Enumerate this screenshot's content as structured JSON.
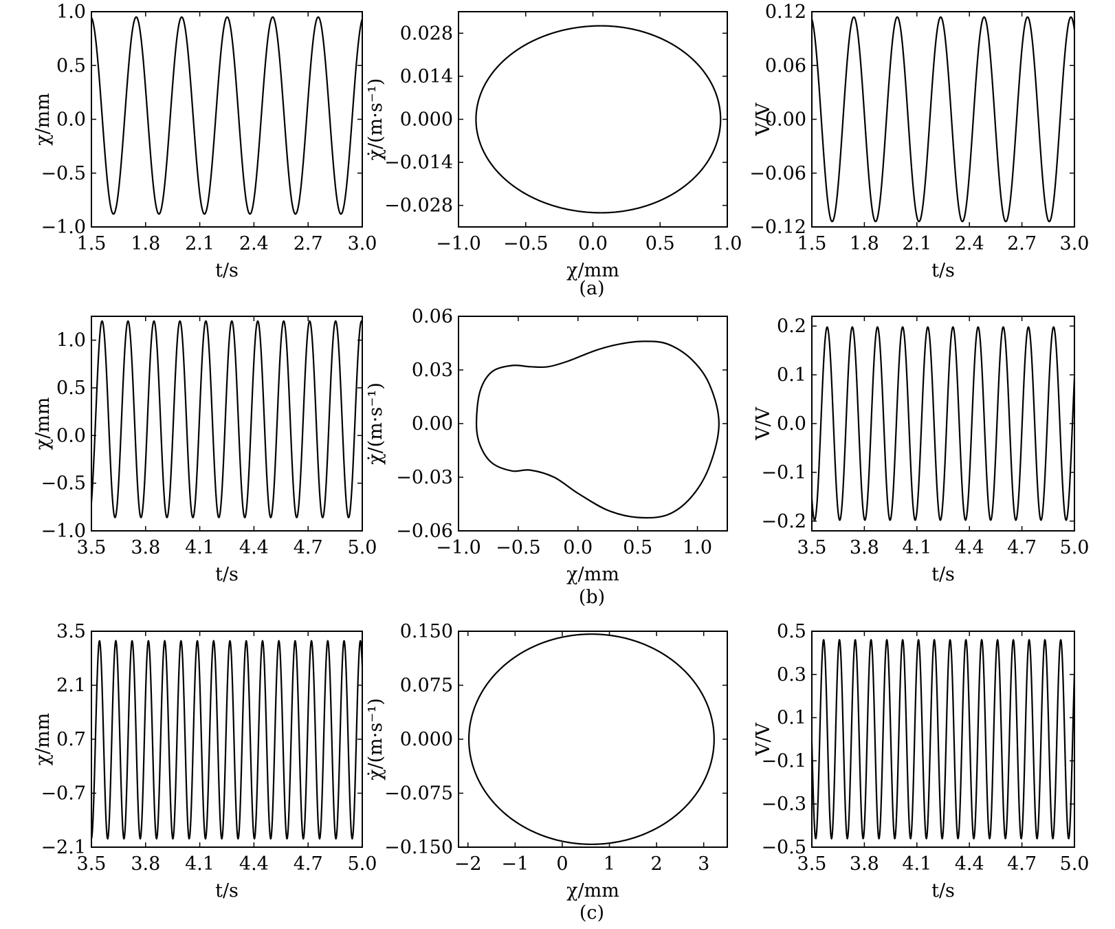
{
  "figure": {
    "captions": [
      "(a)",
      "(b)",
      "(c)"
    ]
  },
  "chart_data": [
    {
      "id": "a-time-disp",
      "type": "line",
      "xlabel": "t/s",
      "ylabel": "χ/mm",
      "xlim": [
        1.5,
        3.0
      ],
      "ylim": [
        -1.0,
        1.0
      ],
      "xticks": [
        "1.5",
        "1.8",
        "2.1",
        "2.4",
        "2.7",
        "3.0"
      ],
      "yticks": [
        "−1.0",
        "−0.5",
        "0.0",
        "0.5",
        "1.0"
      ],
      "series": [
        {
          "color": "#000000",
          "waveform": {
            "x_start": 1.5,
            "x_end": 3.0,
            "period": 0.252,
            "peak_x": 1.748,
            "max": 0.95,
            "min": -0.88
          }
        }
      ]
    },
    {
      "id": "a-phase",
      "type": "line",
      "xlabel": "χ/mm",
      "ylabel": "χ̇/(m·s⁻¹)",
      "xlim": [
        -1.0,
        1.0
      ],
      "ylim": [
        -0.035,
        0.035
      ],
      "xticks": [
        "−1.0",
        "−0.5",
        "0.0",
        "0.5",
        "1.0"
      ],
      "yticks": [
        "−0.028",
        "−0.014",
        "0.000",
        "0.014",
        "0.028"
      ],
      "series": [
        {
          "color": "#000000",
          "loop": {
            "x_min": -0.87,
            "x_max": 0.95,
            "y_max": 0.0304,
            "y_min": -0.0304,
            "x_at_extrema": 0.06
          }
        }
      ]
    },
    {
      "id": "a-time-volt",
      "type": "line",
      "xlabel": "t/s",
      "ylabel": "V/V",
      "xlim": [
        1.5,
        3.0
      ],
      "ylim": [
        -0.12,
        0.12
      ],
      "xticks": [
        "1.5",
        "1.8",
        "2.1",
        "2.4",
        "2.7",
        "3.0"
      ],
      "yticks": [
        "−0.12",
        "−0.06",
        "0.00",
        "0.06",
        "0.12"
      ],
      "series": [
        {
          "color": "#000000",
          "waveform": {
            "x_start": 1.5,
            "x_end": 3.0,
            "period": 0.248,
            "peak_x": 1.74,
            "max": 0.114,
            "min": -0.114
          }
        }
      ]
    },
    {
      "id": "b-time-disp",
      "type": "line",
      "xlabel": "t/s",
      "ylabel": "χ/mm",
      "xlim": [
        3.5,
        5.0
      ],
      "ylim": [
        -1.0,
        1.25
      ],
      "xticks": [
        "3.5",
        "3.8",
        "4.1",
        "4.4",
        "4.7",
        "5.0"
      ],
      "yticks": [
        "−1.0",
        "−0.5",
        "0.0",
        "0.5",
        "1.0"
      ],
      "series": [
        {
          "color": "#000000",
          "waveform": {
            "x_start": 3.5,
            "x_end": 5.0,
            "period": 0.1437,
            "peak_x": 3.559,
            "max": 1.2,
            "min": -0.86
          }
        }
      ]
    },
    {
      "id": "b-phase",
      "type": "line",
      "xlabel": "χ/mm",
      "ylabel": "χ̇/(m·s⁻¹)",
      "xlim": [
        -1.0,
        1.25
      ],
      "ylim": [
        -0.06,
        0.06
      ],
      "xticks": [
        "−1.0",
        "−0.5",
        "0.0",
        "0.5",
        "1.0"
      ],
      "yticks": [
        "−0.06",
        "−0.03",
        "0.00",
        "0.03",
        "0.06"
      ],
      "series": [
        {
          "color": "#000000",
          "points": [
            [
              -0.85,
              0.0
            ],
            [
              -0.82,
              0.018
            ],
            [
              -0.72,
              0.029
            ],
            [
              -0.55,
              0.0325
            ],
            [
              -0.4,
              0.0318
            ],
            [
              -0.25,
              0.0318
            ],
            [
              -0.08,
              0.035
            ],
            [
              0.15,
              0.041
            ],
            [
              0.35,
              0.0445
            ],
            [
              0.55,
              0.046
            ],
            [
              0.75,
              0.0445
            ],
            [
              0.95,
              0.036
            ],
            [
              1.1,
              0.022
            ],
            [
              1.18,
              0.0
            ],
            [
              1.1,
              -0.024
            ],
            [
              0.95,
              -0.041
            ],
            [
              0.75,
              -0.051
            ],
            [
              0.5,
              -0.0525
            ],
            [
              0.25,
              -0.0485
            ],
            [
              0.0,
              -0.039
            ],
            [
              -0.2,
              -0.03
            ],
            [
              -0.4,
              -0.026
            ],
            [
              -0.55,
              -0.0265
            ],
            [
              -0.72,
              -0.022
            ],
            [
              -0.82,
              -0.012
            ]
          ]
        }
      ]
    },
    {
      "id": "b-time-volt",
      "type": "line",
      "xlabel": "t/s",
      "ylabel": "V/V",
      "xlim": [
        3.5,
        5.0
      ],
      "ylim": [
        -0.22,
        0.22
      ],
      "xticks": [
        "3.5",
        "3.8",
        "4.1",
        "4.4",
        "4.7",
        "5.0"
      ],
      "yticks": [
        "−0.2",
        "−0.1",
        "0.0",
        "0.1",
        "0.2"
      ],
      "series": [
        {
          "color": "#000000",
          "waveform": {
            "x_start": 3.5,
            "x_end": 5.0,
            "period": 0.1437,
            "peak_x": 3.5875,
            "max": 0.198,
            "min": -0.198
          }
        }
      ]
    },
    {
      "id": "c-time-disp",
      "type": "line",
      "xlabel": "t/s",
      "ylabel": "χ/mm",
      "xlim": [
        3.5,
        5.0
      ],
      "ylim": [
        -2.1,
        3.5
      ],
      "xticks": [
        "3.5",
        "3.8",
        "4.1",
        "4.4",
        "4.7",
        "5.0"
      ],
      "yticks": [
        "−2.1",
        "−0.7",
        "0.7",
        "2.1",
        "3.5"
      ],
      "series": [
        {
          "color": "#000000",
          "waveform": {
            "x_start": 3.5,
            "x_end": 5.0,
            "period": 0.0903,
            "peak_x": 3.5447,
            "max": 3.25,
            "min": -1.88
          }
        }
      ]
    },
    {
      "id": "c-phase",
      "type": "line",
      "xlabel": "χ/mm",
      "ylabel": "χ̇/(m·s⁻¹)",
      "xlim": [
        -2.2,
        3.5
      ],
      "ylim": [
        -0.15,
        0.15
      ],
      "xticks": [
        "−2",
        "−1",
        "0",
        "1",
        "2",
        "3"
      ],
      "yticks": [
        "−0.150",
        "−0.075",
        "0.000",
        "0.075",
        "0.150"
      ],
      "series": [
        {
          "color": "#000000",
          "loop": {
            "x_min": -1.98,
            "x_max": 3.22,
            "y_max": 0.146,
            "y_min": -0.146,
            "x_at_extrema": 0.62
          }
        }
      ]
    },
    {
      "id": "c-time-volt",
      "type": "line",
      "xlabel": "t/s",
      "ylabel": "V/V",
      "xlim": [
        3.5,
        5.0
      ],
      "ylim": [
        -0.5,
        0.5
      ],
      "xticks": [
        "3.5",
        "3.8",
        "4.1",
        "4.4",
        "4.7",
        "5.0"
      ],
      "yticks": [
        "−0.5",
        "−0.3",
        "−0.1",
        "0.1",
        "0.3",
        "0.5"
      ],
      "series": [
        {
          "color": "#000000",
          "waveform": {
            "x_start": 3.5,
            "x_end": 5.0,
            "period": 0.0903,
            "peak_x": 3.5673,
            "max": 0.46,
            "min": -0.46
          }
        }
      ]
    }
  ]
}
